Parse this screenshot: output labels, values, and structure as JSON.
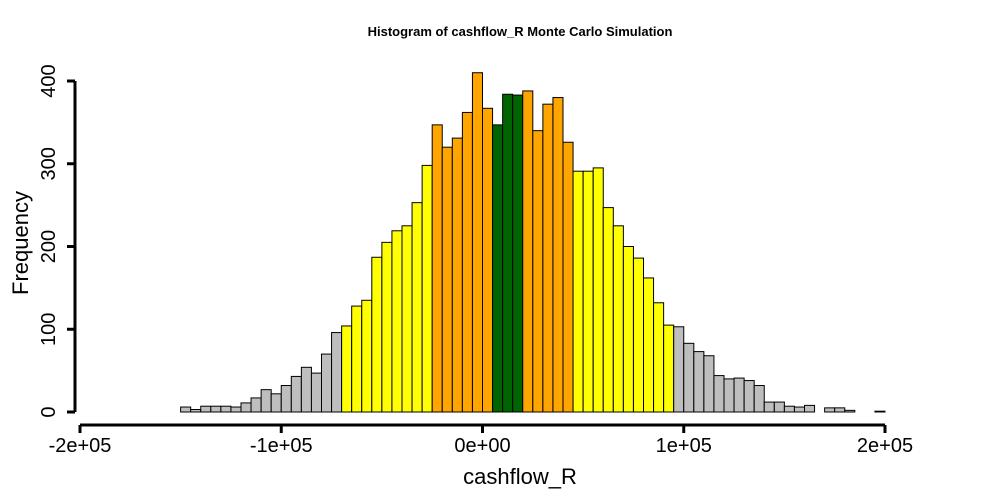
{
  "chart_data": {
    "type": "bar",
    "title": "Histogram of  cashflow_R  Monte Carlo Simulation",
    "xlabel": "cashflow_R",
    "ylabel": "Frequency",
    "xlim": [
      -200000,
      225000
    ],
    "ylim": [
      0,
      420
    ],
    "bin_width": 5000,
    "x_ticks": [
      {
        "value": -200000,
        "label": "-2e+05"
      },
      {
        "value": -100000,
        "label": "-1e+05"
      },
      {
        "value": 0,
        "label": "0e+00"
      },
      {
        "value": 100000,
        "label": "1e+05"
      },
      {
        "value": 200000,
        "label": "2e+05"
      }
    ],
    "y_ticks": [
      {
        "value": 0,
        "label": "0"
      },
      {
        "value": 100,
        "label": "100"
      },
      {
        "value": 200,
        "label": "200"
      },
      {
        "value": 300,
        "label": "300"
      },
      {
        "value": 400,
        "label": "400"
      }
    ],
    "colors": {
      "tail": "#bebebe",
      "outer": "#ffff00",
      "inner": "#ffa500",
      "center": "#006400",
      "outline": "#000000"
    },
    "bins": [
      {
        "x0": -185000,
        "count": 0,
        "band": "tail"
      },
      {
        "x0": -180000,
        "count": 0,
        "band": "tail"
      },
      {
        "x0": -175000,
        "count": 0,
        "band": "tail"
      },
      {
        "x0": -170000,
        "count": 0,
        "band": "tail"
      },
      {
        "x0": -165000,
        "count": 0,
        "band": "tail"
      },
      {
        "x0": -160000,
        "count": 0,
        "band": "tail"
      },
      {
        "x0": -155000,
        "count": 0,
        "band": "tail"
      },
      {
        "x0": -150000,
        "count": 6,
        "band": "tail"
      },
      {
        "x0": -145000,
        "count": 3,
        "band": "tail"
      },
      {
        "x0": -140000,
        "count": 7,
        "band": "tail"
      },
      {
        "x0": -135000,
        "count": 7,
        "band": "tail"
      },
      {
        "x0": -130000,
        "count": 7,
        "band": "tail"
      },
      {
        "x0": -125000,
        "count": 6,
        "band": "tail"
      },
      {
        "x0": -120000,
        "count": 11,
        "band": "tail"
      },
      {
        "x0": -115000,
        "count": 17,
        "band": "tail"
      },
      {
        "x0": -110000,
        "count": 27,
        "band": "tail"
      },
      {
        "x0": -105000,
        "count": 22,
        "band": "tail"
      },
      {
        "x0": -100000,
        "count": 32,
        "band": "tail"
      },
      {
        "x0": -95000,
        "count": 43,
        "band": "tail"
      },
      {
        "x0": -90000,
        "count": 54,
        "band": "tail"
      },
      {
        "x0": -85000,
        "count": 47,
        "band": "tail"
      },
      {
        "x0": -80000,
        "count": 70,
        "band": "tail"
      },
      {
        "x0": -75000,
        "count": 96,
        "band": "tail"
      },
      {
        "x0": -70000,
        "count": 104,
        "band": "outer"
      },
      {
        "x0": -65000,
        "count": 128,
        "band": "outer"
      },
      {
        "x0": -60000,
        "count": 135,
        "band": "outer"
      },
      {
        "x0": -55000,
        "count": 187,
        "band": "outer"
      },
      {
        "x0": -50000,
        "count": 205,
        "band": "outer"
      },
      {
        "x0": -45000,
        "count": 219,
        "band": "outer"
      },
      {
        "x0": -40000,
        "count": 225,
        "band": "outer"
      },
      {
        "x0": -35000,
        "count": 253,
        "band": "outer"
      },
      {
        "x0": -30000,
        "count": 298,
        "band": "outer"
      },
      {
        "x0": -25000,
        "count": 347,
        "band": "inner"
      },
      {
        "x0": -20000,
        "count": 320,
        "band": "inner"
      },
      {
        "x0": -15000,
        "count": 331,
        "band": "inner"
      },
      {
        "x0": -10000,
        "count": 362,
        "band": "inner"
      },
      {
        "x0": -5000,
        "count": 410,
        "band": "inner"
      },
      {
        "x0": 0,
        "count": 367,
        "band": "inner"
      },
      {
        "x0": 5000,
        "count": 347,
        "band": "center"
      },
      {
        "x0": 10000,
        "count": 384,
        "band": "center"
      },
      {
        "x0": 15000,
        "count": 383,
        "band": "center"
      },
      {
        "x0": 20000,
        "count": 388,
        "band": "inner"
      },
      {
        "x0": 25000,
        "count": 340,
        "band": "inner"
      },
      {
        "x0": 30000,
        "count": 372,
        "band": "inner"
      },
      {
        "x0": 35000,
        "count": 380,
        "band": "inner"
      },
      {
        "x0": 40000,
        "count": 326,
        "band": "inner"
      },
      {
        "x0": 45000,
        "count": 291,
        "band": "outer"
      },
      {
        "x0": 50000,
        "count": 291,
        "band": "outer"
      },
      {
        "x0": 55000,
        "count": 295,
        "band": "outer"
      },
      {
        "x0": 60000,
        "count": 247,
        "band": "outer"
      },
      {
        "x0": 65000,
        "count": 225,
        "band": "outer"
      },
      {
        "x0": 70000,
        "count": 200,
        "band": "outer"
      },
      {
        "x0": 75000,
        "count": 186,
        "band": "outer"
      },
      {
        "x0": 80000,
        "count": 162,
        "band": "outer"
      },
      {
        "x0": 85000,
        "count": 132,
        "band": "outer"
      },
      {
        "x0": 90000,
        "count": 105,
        "band": "outer"
      },
      {
        "x0": 95000,
        "count": 103,
        "band": "tail"
      },
      {
        "x0": 100000,
        "count": 83,
        "band": "tail"
      },
      {
        "x0": 105000,
        "count": 73,
        "band": "tail"
      },
      {
        "x0": 110000,
        "count": 68,
        "band": "tail"
      },
      {
        "x0": 115000,
        "count": 44,
        "band": "tail"
      },
      {
        "x0": 120000,
        "count": 40,
        "band": "tail"
      },
      {
        "x0": 125000,
        "count": 41,
        "band": "tail"
      },
      {
        "x0": 130000,
        "count": 38,
        "band": "tail"
      },
      {
        "x0": 135000,
        "count": 32,
        "band": "tail"
      },
      {
        "x0": 140000,
        "count": 12,
        "band": "tail"
      },
      {
        "x0": 145000,
        "count": 12,
        "band": "tail"
      },
      {
        "x0": 150000,
        "count": 7,
        "band": "tail"
      },
      {
        "x0": 155000,
        "count": 6,
        "band": "tail"
      },
      {
        "x0": 160000,
        "count": 8,
        "band": "tail"
      },
      {
        "x0": 165000,
        "count": 0,
        "band": "tail"
      },
      {
        "x0": 170000,
        "count": 5,
        "band": "tail"
      },
      {
        "x0": 175000,
        "count": 5,
        "band": "tail"
      },
      {
        "x0": 180000,
        "count": 2,
        "band": "tail"
      },
      {
        "x0": 185000,
        "count": 0,
        "band": "tail"
      },
      {
        "x0": 190000,
        "count": 0,
        "band": "tail"
      },
      {
        "x0": 195000,
        "count": 1,
        "band": "tail"
      },
      {
        "x0": 200000,
        "count": 0,
        "band": "tail"
      },
      {
        "x0": 205000,
        "count": 0,
        "band": "tail"
      },
      {
        "x0": 210000,
        "count": 0,
        "band": "tail"
      },
      {
        "x0": 215000,
        "count": 0,
        "band": "tail"
      }
    ]
  }
}
